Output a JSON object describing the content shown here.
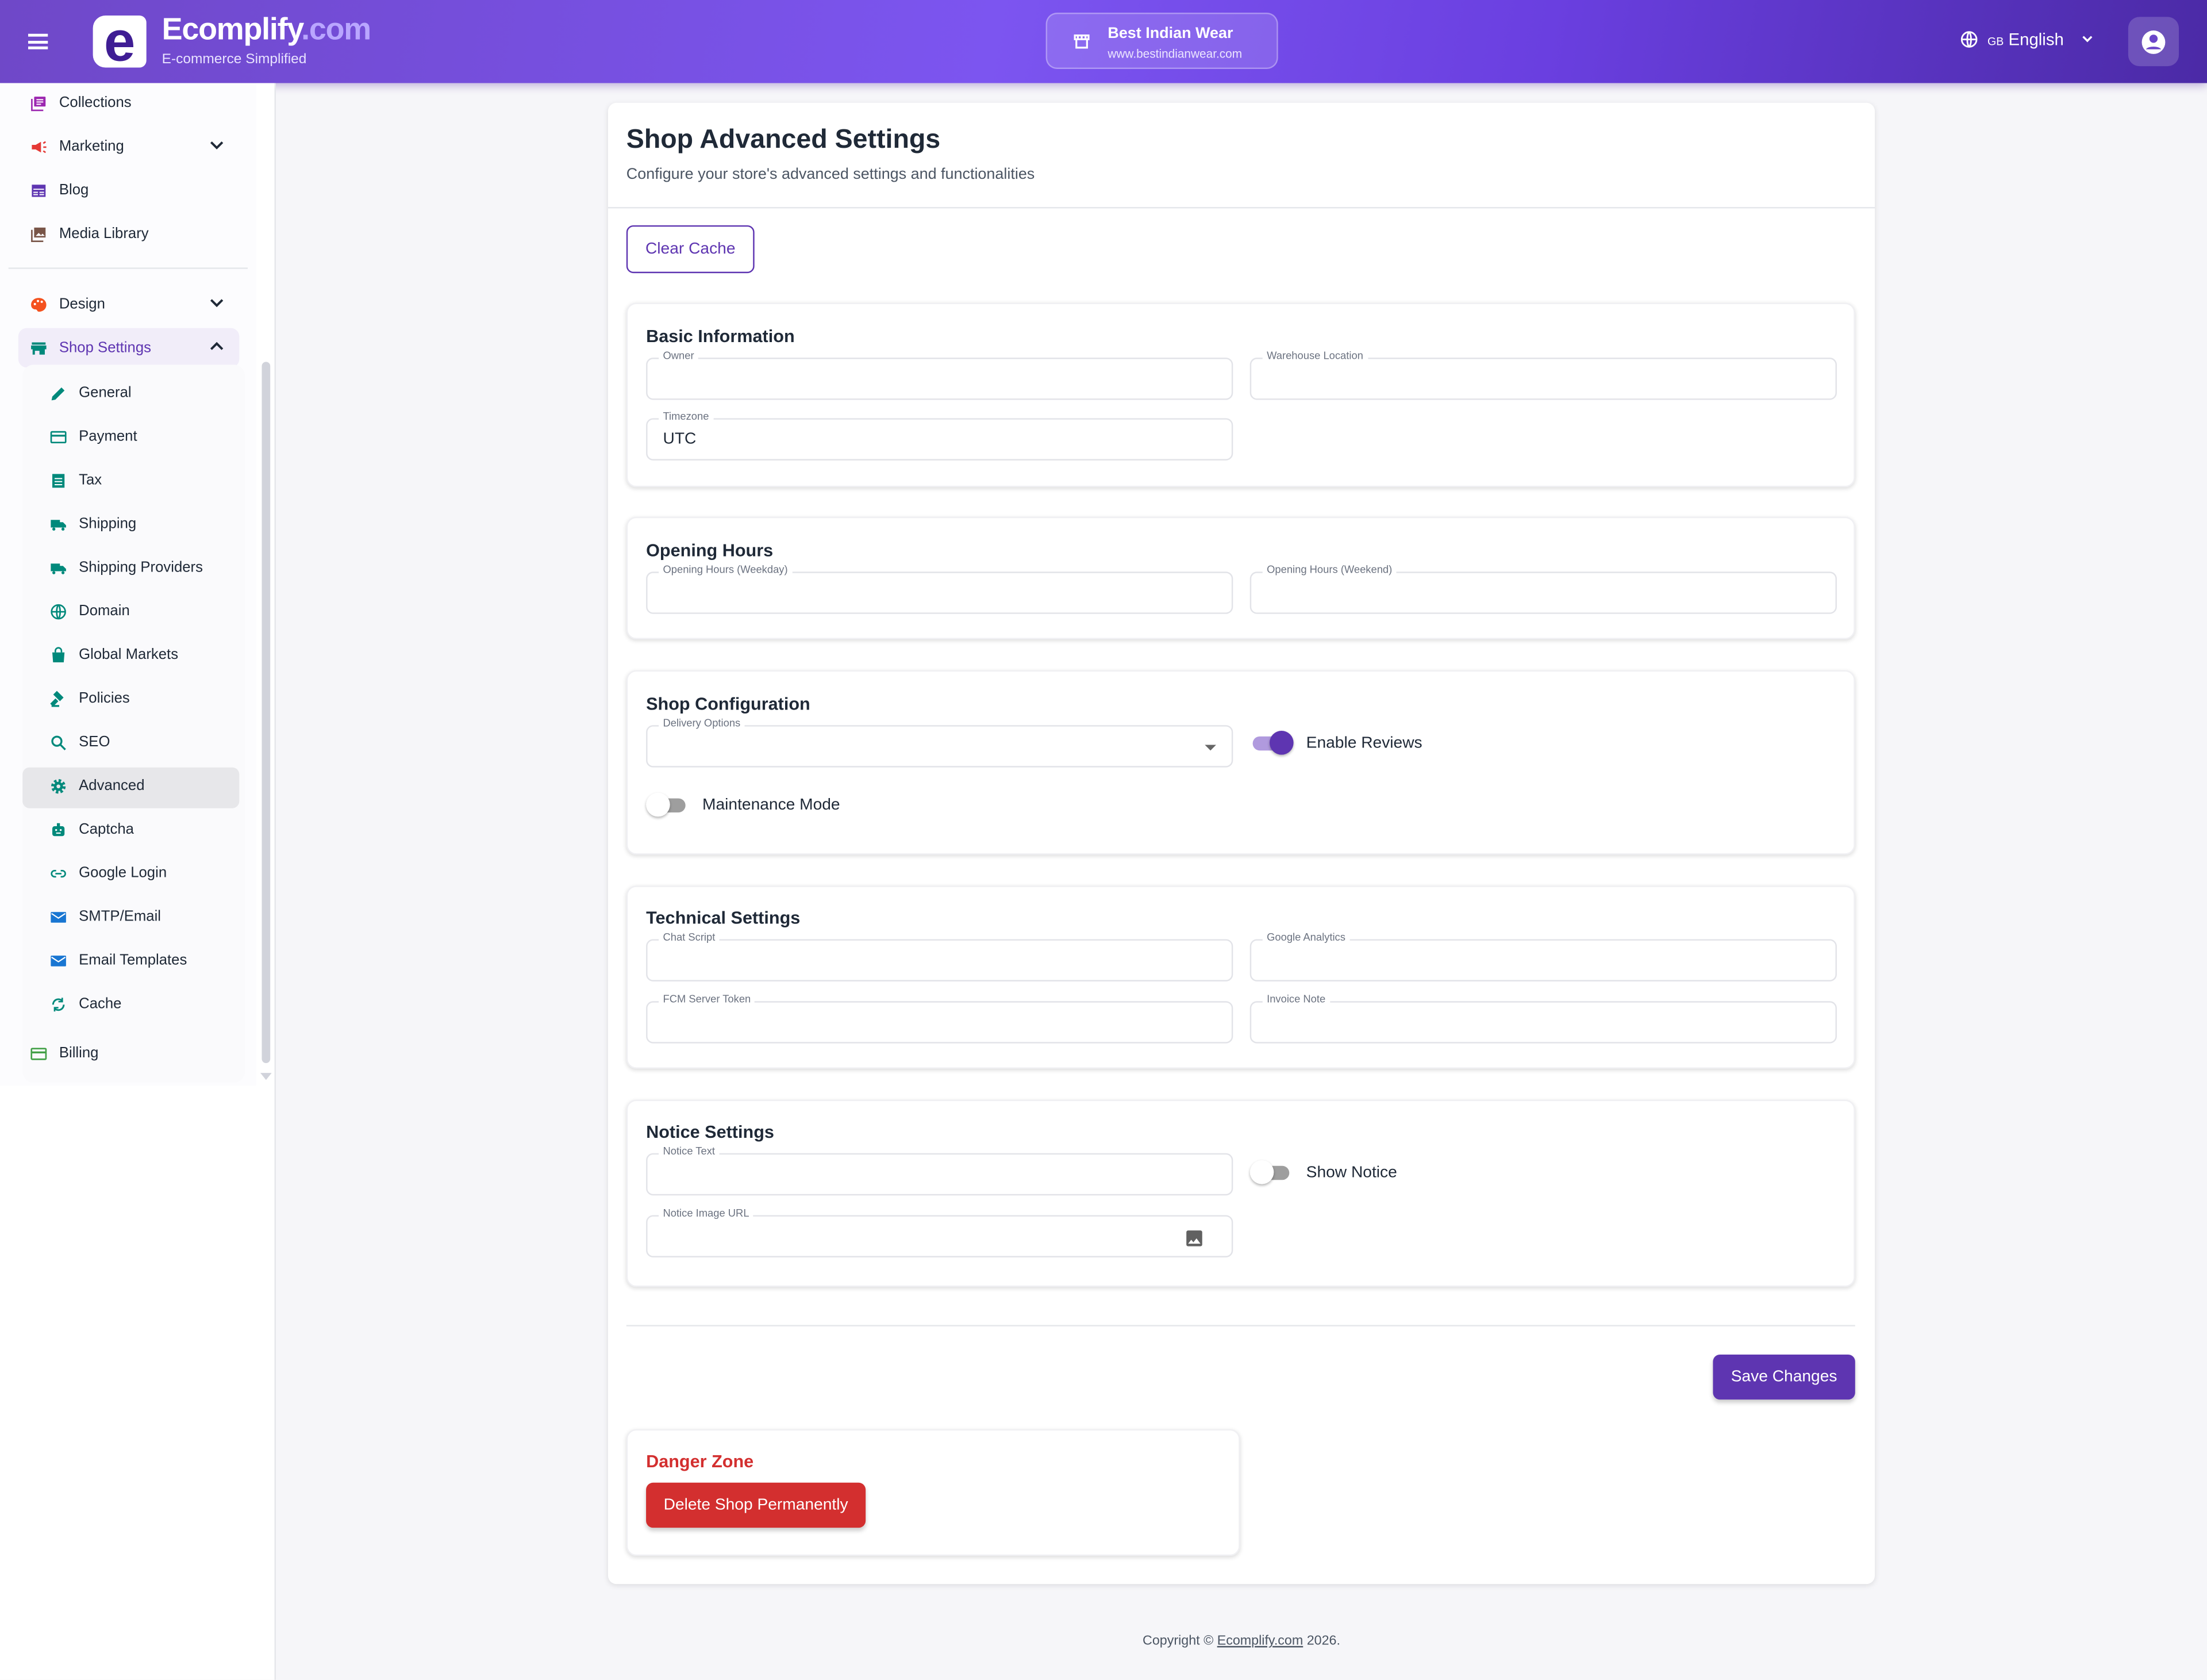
{
  "header": {
    "brand_main": "Ecomplify",
    "brand_suffix": ".com",
    "tagline": "E-commerce Simplified",
    "logo_letter": "e",
    "store_name": "Best Indian Wear",
    "store_url": "www.bestindianwear.com",
    "lang_code": "GB",
    "lang_label": "English"
  },
  "sidebar": {
    "top_items": [
      {
        "label": "Collections",
        "icon": "collections-icon",
        "color": "#9c27b0"
      },
      {
        "label": "Marketing",
        "icon": "megaphone-icon",
        "color": "#e53935"
      },
      {
        "label": "Blog",
        "icon": "blog-icon",
        "color": "#5e35b1"
      },
      {
        "label": "Media Library",
        "icon": "photo-library-icon",
        "color": "#795548"
      }
    ],
    "design": {
      "label": "Design",
      "color": "#f4511e"
    },
    "shop_settings": {
      "label": "Shop Settings",
      "color": "#00897b"
    },
    "children": [
      {
        "label": "General",
        "icon": "pencil-icon"
      },
      {
        "label": "Payment",
        "icon": "credit-card-icon"
      },
      {
        "label": "Tax",
        "icon": "receipt-icon"
      },
      {
        "label": "Shipping",
        "icon": "truck-icon"
      },
      {
        "label": "Shipping Providers",
        "icon": "truck-icon"
      },
      {
        "label": "Domain",
        "icon": "globe-icon"
      },
      {
        "label": "Global Markets",
        "icon": "shopping-bag-icon"
      },
      {
        "label": "Policies",
        "icon": "gavel-icon"
      },
      {
        "label": "SEO",
        "icon": "search-icon"
      },
      {
        "label": "Advanced",
        "icon": "gear-icon"
      },
      {
        "label": "Captcha",
        "icon": "robot-icon"
      },
      {
        "label": "Google Login",
        "icon": "link-icon"
      },
      {
        "label": "SMTP/Email",
        "icon": "mail-icon"
      },
      {
        "label": "Email Templates",
        "icon": "mail-icon"
      },
      {
        "label": "Cache",
        "icon": "sync-icon"
      }
    ],
    "billing": {
      "label": "Billing",
      "color": "#43a047"
    },
    "active": "Advanced"
  },
  "page": {
    "title": "Shop Advanced Settings",
    "subtitle": "Configure your store's advanced settings and functionalities",
    "clear_cache": "Clear Cache"
  },
  "basic": {
    "title": "Basic Information",
    "owner_label": "Owner",
    "owner": "",
    "warehouse_label": "Warehouse Location",
    "warehouse": "",
    "timezone_label": "Timezone",
    "timezone": "UTC"
  },
  "hours": {
    "title": "Opening Hours",
    "weekday_label": "Opening Hours (Weekday)",
    "weekend_label": "Opening Hours (Weekend)"
  },
  "config": {
    "title": "Shop Configuration",
    "delivery_label": "Delivery Options",
    "enable_reviews": "Enable Reviews",
    "enable_reviews_on": true,
    "maintenance": "Maintenance Mode",
    "maintenance_on": false
  },
  "technical": {
    "title": "Technical Settings",
    "chat_label": "Chat Script",
    "ga_label": "Google Analytics",
    "fcm_label": "FCM Server Token",
    "invoice_label": "Invoice Note"
  },
  "notice": {
    "title": "Notice Settings",
    "text_label": "Notice Text",
    "image_label": "Notice Image URL",
    "show_notice": "Show Notice",
    "show_notice_on": false
  },
  "actions": {
    "save": "Save Changes"
  },
  "danger": {
    "title": "Danger Zone",
    "delete": "Delete Shop Permanently"
  },
  "footer": {
    "prefix": "Copyright © ",
    "link": "Ecomplify.com",
    "suffix": " 2026."
  },
  "colors": {
    "primary": "#5e35b1",
    "danger": "#d32f2f",
    "teal": "#00897b"
  }
}
